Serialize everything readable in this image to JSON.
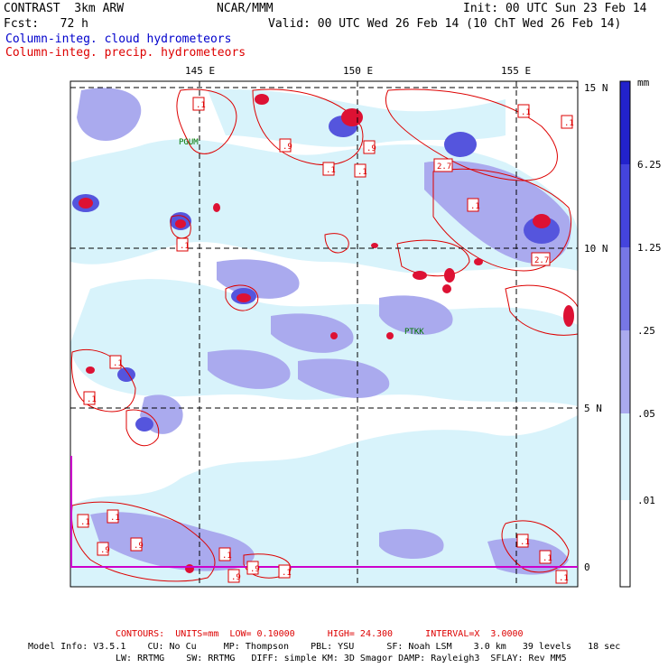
{
  "header": {
    "model": "CONTRAST  3km ARW",
    "center": "NCAR/MMM",
    "init": "Init: 00 UTC Sun 23 Feb 14",
    "fcst": "Fcst:   72 h",
    "valid": "Valid: 00 UTC Wed 26 Feb 14 (10 ChT Wed 26 Feb 14)",
    "field1": "Column-integ. cloud hydrometeors",
    "field2": "Column-integ. precip. hydrometeors"
  },
  "axes": {
    "lon_labels": [
      "145 E",
      "150 E",
      "155 E"
    ],
    "lat_labels": [
      "15 N",
      "10 N",
      "5 N",
      "0"
    ]
  },
  "stations": [
    {
      "id": "PGUM"
    },
    {
      "id": "PTKK"
    }
  ],
  "contour_labels": [
    ".1",
    ".9",
    "2.7"
  ],
  "colorbar": {
    "unit": "mm",
    "levels": [
      "6.25",
      "1.25",
      ".25",
      ".05",
      ".01"
    ],
    "colors": [
      "#2222cc",
      "#4444dd",
      "#7777e6",
      "#aaaaee",
      "#d8f3fb",
      "#ffffff"
    ]
  },
  "footer": {
    "contours": "CONTOURS:  UNITS=mm  LOW= 0.10000      HIGH= 24.300      INTERVAL=X  3.0000",
    "info1": "Model Info: V3.5.1    CU: No Cu     MP: Thompson    PBL: YSU      SF: Noah LSM    3.0 km   39 levels   18 sec",
    "info2": "LW: RRTMG    SW: RRTMG   DIFF: simple KM: 3D Smagor DAMP: Rayleigh3  SFLAY: Rev MM5"
  }
}
